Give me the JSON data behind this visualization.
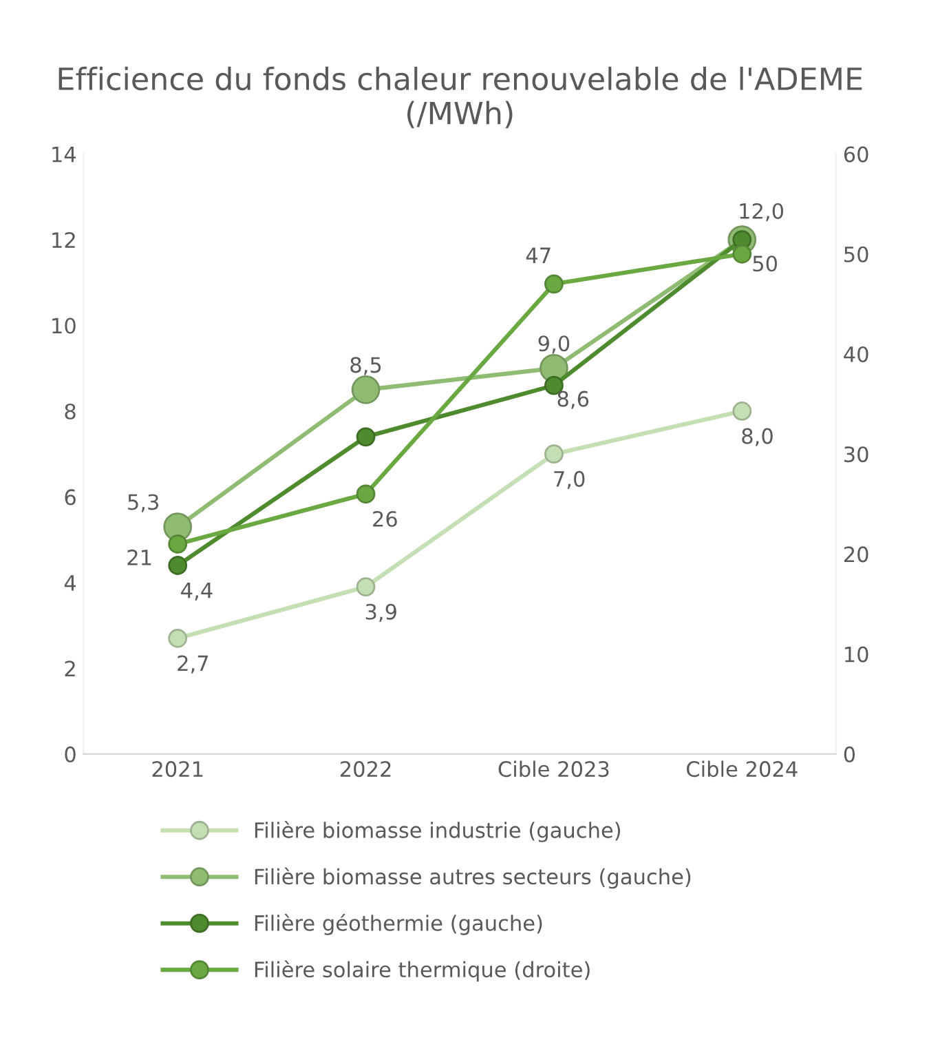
{
  "chart_data": {
    "type": "line",
    "title": "Efficience du fonds chaleur renouvelable de l'ADEME (/MWh)",
    "categories": [
      "2021",
      "2022",
      "Cible 2023",
      "Cible 2024"
    ],
    "series": [
      {
        "name": "Filière biomasse industrie (gauche)",
        "color": "#c5dfb5",
        "values": [
          2.7,
          3.9,
          7.0,
          8.0
        ],
        "value_labels": [
          "2,7",
          "3,9",
          "7,0",
          "8,0"
        ]
      },
      {
        "name": "Filière biomasse autres secteurs (gauche)",
        "color": "#8fbc72",
        "values": [
          5.3,
          8.5,
          9.0,
          12.0
        ],
        "value_labels": [
          "5,3",
          "8,5",
          "9,0",
          null
        ]
      },
      {
        "name": "Filière géothermie (gauche)",
        "color": "#4e8a2e",
        "values": [
          4.4,
          7.4,
          8.6,
          12.0
        ],
        "value_labels": [
          "4,4",
          null,
          "8,6",
          "12,0"
        ]
      },
      {
        "name": "Filière solaire thermique (droite)",
        "color": "#6aa842",
        "axis": "y2",
        "values": [
          21,
          26,
          47,
          50
        ],
        "value_labels": [
          "21",
          "26",
          "47",
          "50"
        ]
      }
    ],
    "ylim": [
      0,
      14
    ],
    "yticks": [
      0,
      2,
      4,
      6,
      8,
      10,
      12,
      14
    ],
    "y2lim": [
      0,
      60
    ],
    "y2ticks": [
      0,
      10,
      20,
      30,
      40,
      50,
      60
    ],
    "grid": false,
    "legend": "bottom",
    "marker": "circle",
    "line_style": "solid"
  }
}
